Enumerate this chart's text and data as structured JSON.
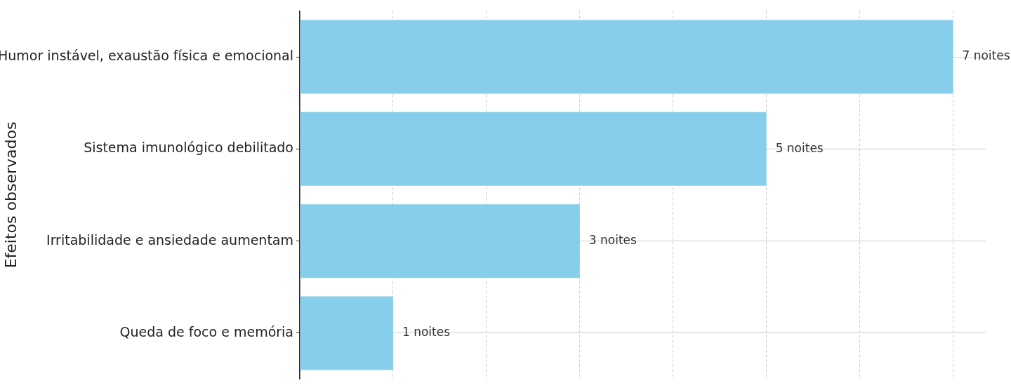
{
  "chart_data": {
    "type": "bar",
    "orientation": "horizontal",
    "ylabel": "Efeitos observados",
    "categories": [
      "Humor instável, exaustão física e emocional",
      "Sistema imunológico debilitado",
      "Irritabilidade e ansiedade aumentam",
      "Queda de foco e memória"
    ],
    "values": [
      7,
      5,
      3,
      1
    ],
    "color": "#87ceeb",
    "value_labels": [
      "7 noites",
      "5 noites",
      "3 noites",
      "1 noites"
    ],
    "xlim": [
      0,
      7.35
    ],
    "xticks": [
      {
        "value": 0,
        "label": null
      },
      {
        "value": 1,
        "label": null
      },
      {
        "value": 2,
        "label": null
      },
      {
        "value": 3,
        "label": null
      },
      {
        "value": 4,
        "label": null
      },
      {
        "value": 5,
        "label": null
      },
      {
        "value": 6,
        "label": null
      },
      {
        "value": 7,
        "label": null
      }
    ],
    "grid": true,
    "tick_labels": "y"
  }
}
